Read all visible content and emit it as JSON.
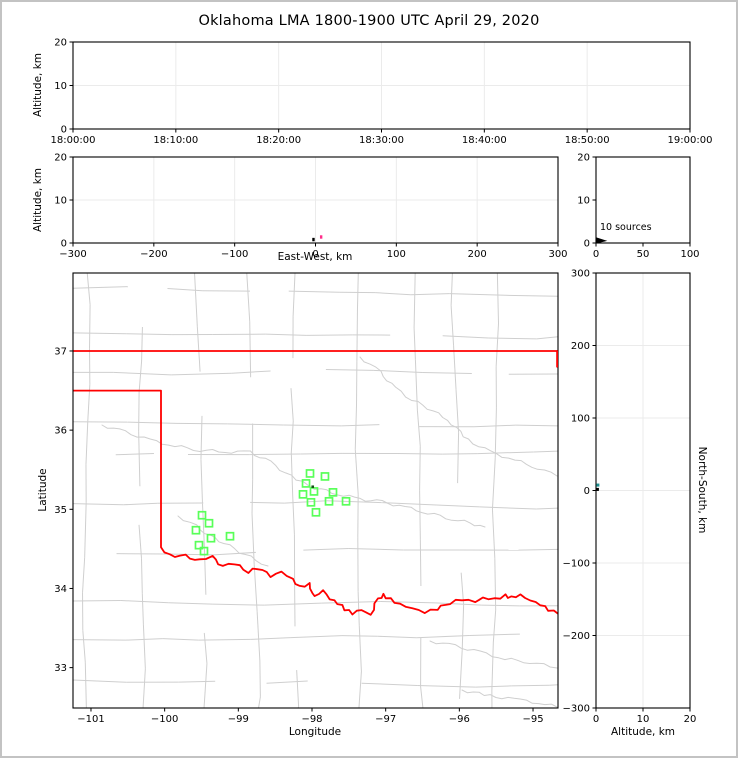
{
  "title": "Oklahoma LMA 1800-1900 UTC April 29, 2020",
  "labels": {
    "altitude_km": "Altitude, km",
    "east_west": "East-West, km",
    "latitude": "Latitude",
    "longitude": "Longitude",
    "north_south": "North-South, km",
    "sources_annotation": "10 sources"
  },
  "colors": {
    "background": "#ffffff",
    "frame": "#c3c3c3",
    "grid": "#ebebeb",
    "county": "#cfcfcf",
    "state_border": "#ff0000",
    "station": "#59ff59",
    "spine": "#000000"
  },
  "chart_data": [
    {
      "id": "time_height",
      "type": "scatter",
      "ylabel": "Altitude, km",
      "xtick_labels": [
        "18:00:00",
        "18:10:00",
        "18:20:00",
        "18:30:00",
        "18:40:00",
        "18:50:00",
        "19:00:00"
      ],
      "yticks": [
        0,
        10,
        20
      ],
      "ylim": [
        0,
        20
      ],
      "grid": true,
      "points": []
    },
    {
      "id": "ew_height",
      "type": "scatter",
      "xlabel": "East-West, km",
      "ylabel": "Altitude, km",
      "xticks": [
        -300,
        -200,
        -100,
        0,
        100,
        200,
        300
      ],
      "xlim": [
        -300,
        300
      ],
      "yticks": [
        0,
        10,
        20
      ],
      "ylim": [
        0,
        20
      ],
      "grid": true,
      "points": [
        {
          "x": -2.5,
          "alt": 0.8,
          "color": "#000000"
        },
        {
          "x": 7.0,
          "alt": 1.4,
          "color": "#ff2d8a"
        }
      ]
    },
    {
      "id": "alt_histogram",
      "type": "area",
      "xticks": [
        0,
        50,
        100
      ],
      "xlim": [
        0,
        100
      ],
      "yticks": [
        0,
        10,
        20
      ],
      "ylim": [
        0,
        20
      ],
      "annotation": "10 sources",
      "spike_profile": [
        [
          0,
          0
        ],
        [
          10,
          0.5
        ],
        [
          0,
          1.2
        ]
      ],
      "color": "#000000"
    },
    {
      "id": "plan_view",
      "type": "scatter",
      "xlabel": "Longitude",
      "ylabel": "Latitude",
      "xticks": [
        -101,
        -100,
        -99,
        -98,
        -97,
        -96,
        -95
      ],
      "xlim": [
        -101.244,
        -94.661
      ],
      "yticks": [
        33,
        34,
        35,
        36,
        37
      ],
      "ylim": [
        32.49,
        37.985
      ],
      "stations": [
        [
          -98.027,
          35.453
        ],
        [
          -97.824,
          35.415
        ],
        [
          -98.081,
          35.327
        ],
        [
          -97.973,
          35.226
        ],
        [
          -98.122,
          35.189
        ],
        [
          -97.715,
          35.214
        ],
        [
          -98.014,
          35.088
        ],
        [
          -97.769,
          35.101
        ],
        [
          -97.538,
          35.101
        ],
        [
          -97.946,
          34.962
        ],
        [
          -99.493,
          34.925
        ],
        [
          -99.398,
          34.824
        ],
        [
          -99.575,
          34.736
        ],
        [
          -99.371,
          34.635
        ],
        [
          -99.113,
          34.66
        ],
        [
          -99.534,
          34.547
        ],
        [
          -99.466,
          34.472
        ]
      ],
      "sources": [
        {
          "lon": -97.99,
          "lat": 35.285,
          "color": "#145214"
        }
      ],
      "state_border": {
        "color": "#ff0000",
        "north_line": [
          [
            -101.244,
            37.0
          ],
          [
            -94.661,
            37.0
          ]
        ],
        "east_edge_segment": [
          [
            -94.661,
            37.0
          ],
          [
            -94.661,
            36.8
          ]
        ],
        "panhandle": [
          [
            -101.244,
            36.5
          ],
          [
            -100.05,
            36.5
          ],
          [
            -100.05,
            34.52
          ]
        ],
        "red_river": [
          [
            -100.05,
            34.52
          ],
          [
            -99.93,
            34.42
          ],
          [
            -99.72,
            34.41
          ],
          [
            -99.52,
            34.35
          ],
          [
            -99.36,
            34.4
          ],
          [
            -99.21,
            34.28
          ],
          [
            -99.05,
            34.31
          ],
          [
            -98.87,
            34.21
          ],
          [
            -98.73,
            34.26
          ],
          [
            -98.57,
            34.16
          ],
          [
            -98.41,
            34.22
          ],
          [
            -98.26,
            34.12
          ],
          [
            -98.16,
            34.02
          ],
          [
            -98.05,
            34.06
          ],
          [
            -97.95,
            33.89
          ],
          [
            -97.86,
            33.97
          ],
          [
            -97.76,
            33.86
          ],
          [
            -97.65,
            33.81
          ],
          [
            -97.55,
            33.74
          ],
          [
            -97.46,
            33.69
          ],
          [
            -97.32,
            33.74
          ],
          [
            -97.21,
            33.67
          ],
          [
            -97.1,
            33.87
          ],
          [
            -97.04,
            33.92
          ],
          [
            -96.94,
            33.86
          ],
          [
            -96.81,
            33.79
          ],
          [
            -96.64,
            33.74
          ],
          [
            -96.47,
            33.69
          ],
          [
            -96.3,
            33.74
          ],
          [
            -96.13,
            33.82
          ],
          [
            -95.96,
            33.87
          ],
          [
            -95.79,
            33.84
          ],
          [
            -95.68,
            33.89
          ],
          [
            -95.52,
            33.87
          ],
          [
            -95.38,
            33.91
          ],
          [
            -95.29,
            33.88
          ],
          [
            -95.18,
            33.91
          ],
          [
            -95.04,
            33.84
          ],
          [
            -94.9,
            33.79
          ],
          [
            -94.79,
            33.73
          ],
          [
            -94.66,
            33.68
          ]
        ]
      }
    },
    {
      "id": "ns_height",
      "type": "scatter",
      "xlabel": "Altitude, km",
      "ylabel": "North-South, km",
      "xticks": [
        0,
        10,
        20
      ],
      "xlim": [
        0,
        20
      ],
      "yticks": [
        -300,
        -200,
        -100,
        0,
        100,
        200,
        300
      ],
      "ylim": [
        -300,
        300
      ],
      "grid": true,
      "points": [
        {
          "alt": 0.4,
          "y": 7.5,
          "color": "#1f8f8f"
        },
        {
          "alt": 0.3,
          "y": 1.5,
          "color": "#000000"
        }
      ]
    }
  ]
}
